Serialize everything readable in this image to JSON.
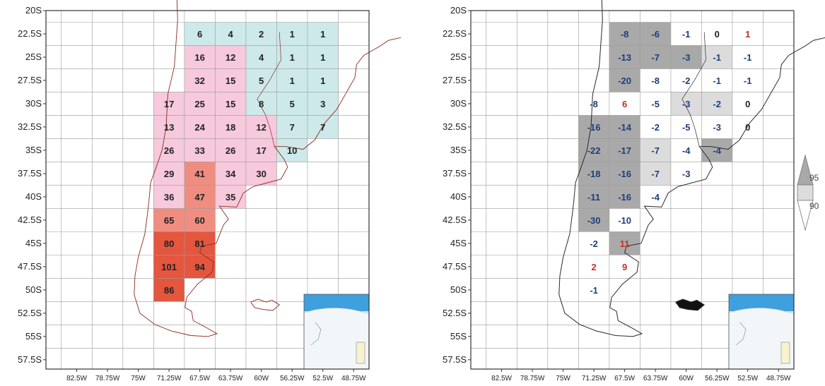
{
  "y_tick_labels": [
    "20S",
    "22.5S",
    "25S",
    "27.5S",
    "30S",
    "32.5S",
    "35S",
    "37.5S",
    "40S",
    "42.5S",
    "45S",
    "47.5S",
    "50S",
    "52.5S",
    "55S",
    "57.5S"
  ],
  "x_tick_labels": [
    "82.5W",
    "78.75W",
    "75W",
    "71.25W",
    "67.5W",
    "63.75W",
    "60W",
    "56.25W",
    "52.5W",
    "48.75W"
  ],
  "x_tick_values_lon": [
    -82.5,
    -78.75,
    -75,
    -71.25,
    -67.5,
    -63.75,
    -60,
    -56.25,
    -52.5,
    -48.75
  ],
  "y_tick_values_lat": [
    -20,
    -22.5,
    -25,
    -27.5,
    -30,
    -32.5,
    -35,
    -37.5,
    -40,
    -42.5,
    -45,
    -47.5,
    -50,
    -52.5,
    -55,
    -57.5
  ],
  "colors": {
    "teal": "#cde9ea",
    "pink": "#f6c9dc",
    "salmon": "#ef8e80",
    "red": "#e5563f",
    "gray_light": "#dcdcdc",
    "gray_dark": "#a9a9a9",
    "text_dark": "#222222",
    "text_blue": "#1d3f7a",
    "text_red": "#c4302b",
    "coast": "#8c2a1e",
    "grid": "#9a9a9a"
  },
  "legend": {
    "labels": [
      "95",
      "90"
    ],
    "levels": [
      95,
      90
    ]
  },
  "left_map": {
    "cells": [
      {
        "lat": -22.5,
        "lon": -67.5,
        "value": "6",
        "fill": "teal"
      },
      {
        "lat": -22.5,
        "lon": -63.75,
        "value": "4",
        "fill": "teal"
      },
      {
        "lat": -22.5,
        "lon": -60,
        "value": "2",
        "fill": "teal"
      },
      {
        "lat": -22.5,
        "lon": -56.25,
        "value": "1",
        "fill": "teal"
      },
      {
        "lat": -22.5,
        "lon": -52.5,
        "value": "1",
        "fill": "teal"
      },
      {
        "lat": -25,
        "lon": -67.5,
        "value": "16",
        "fill": "pink"
      },
      {
        "lat": -25,
        "lon": -63.75,
        "value": "12",
        "fill": "pink"
      },
      {
        "lat": -25,
        "lon": -60,
        "value": "4",
        "fill": "teal"
      },
      {
        "lat": -25,
        "lon": -56.25,
        "value": "1",
        "fill": "teal"
      },
      {
        "lat": -25,
        "lon": -52.5,
        "value": "1",
        "fill": "teal"
      },
      {
        "lat": -27.5,
        "lon": -67.5,
        "value": "32",
        "fill": "pink"
      },
      {
        "lat": -27.5,
        "lon": -63.75,
        "value": "15",
        "fill": "pink"
      },
      {
        "lat": -27.5,
        "lon": -60,
        "value": "5",
        "fill": "teal"
      },
      {
        "lat": -27.5,
        "lon": -56.25,
        "value": "1",
        "fill": "teal"
      },
      {
        "lat": -27.5,
        "lon": -52.5,
        "value": "1",
        "fill": "teal"
      },
      {
        "lat": -30,
        "lon": -71.25,
        "value": "17",
        "fill": "pink"
      },
      {
        "lat": -30,
        "lon": -67.5,
        "value": "25",
        "fill": "pink"
      },
      {
        "lat": -30,
        "lon": -63.75,
        "value": "15",
        "fill": "pink"
      },
      {
        "lat": -30,
        "lon": -60,
        "value": "8",
        "fill": "teal"
      },
      {
        "lat": -30,
        "lon": -56.25,
        "value": "5",
        "fill": "teal"
      },
      {
        "lat": -30,
        "lon": -52.5,
        "value": "3",
        "fill": "teal"
      },
      {
        "lat": -32.5,
        "lon": -71.25,
        "value": "13",
        "fill": "pink"
      },
      {
        "lat": -32.5,
        "lon": -67.5,
        "value": "24",
        "fill": "pink"
      },
      {
        "lat": -32.5,
        "lon": -63.75,
        "value": "18",
        "fill": "pink"
      },
      {
        "lat": -32.5,
        "lon": -60,
        "value": "12",
        "fill": "pink"
      },
      {
        "lat": -32.5,
        "lon": -56.25,
        "value": "7",
        "fill": "teal"
      },
      {
        "lat": -32.5,
        "lon": -52.5,
        "value": "7",
        "fill": "teal"
      },
      {
        "lat": -35,
        "lon": -71.25,
        "value": "26",
        "fill": "pink"
      },
      {
        "lat": -35,
        "lon": -67.5,
        "value": "33",
        "fill": "pink"
      },
      {
        "lat": -35,
        "lon": -63.75,
        "value": "26",
        "fill": "pink"
      },
      {
        "lat": -35,
        "lon": -60,
        "value": "17",
        "fill": "pink"
      },
      {
        "lat": -35,
        "lon": -56.25,
        "value": "10",
        "fill": "teal"
      },
      {
        "lat": -37.5,
        "lon": -71.25,
        "value": "29",
        "fill": "pink"
      },
      {
        "lat": -37.5,
        "lon": -67.5,
        "value": "41",
        "fill": "salmon"
      },
      {
        "lat": -37.5,
        "lon": -63.75,
        "value": "34",
        "fill": "pink"
      },
      {
        "lat": -37.5,
        "lon": -60,
        "value": "30",
        "fill": "pink"
      },
      {
        "lat": -40,
        "lon": -71.25,
        "value": "36",
        "fill": "pink"
      },
      {
        "lat": -40,
        "lon": -67.5,
        "value": "47",
        "fill": "salmon"
      },
      {
        "lat": -40,
        "lon": -63.75,
        "value": "35",
        "fill": "pink"
      },
      {
        "lat": -42.5,
        "lon": -71.25,
        "value": "65",
        "fill": "salmon"
      },
      {
        "lat": -42.5,
        "lon": -67.5,
        "value": "60",
        "fill": "salmon"
      },
      {
        "lat": -45,
        "lon": -71.25,
        "value": "80",
        "fill": "red"
      },
      {
        "lat": -45,
        "lon": -67.5,
        "value": "81",
        "fill": "red"
      },
      {
        "lat": -47.5,
        "lon": -71.25,
        "value": "101",
        "fill": "red"
      },
      {
        "lat": -47.5,
        "lon": -67.5,
        "value": "94",
        "fill": "red"
      },
      {
        "lat": -50,
        "lon": -71.25,
        "value": "86",
        "fill": "red"
      }
    ]
  },
  "right_map": {
    "cells": [
      {
        "lat": -22.5,
        "lon": -67.5,
        "value": "-8",
        "fill": "gray_dark",
        "text": "text_blue"
      },
      {
        "lat": -22.5,
        "lon": -63.75,
        "value": "-6",
        "fill": "gray_dark",
        "text": "text_blue"
      },
      {
        "lat": -22.5,
        "lon": -60,
        "value": "-1",
        "fill": "none",
        "text": "text_blue"
      },
      {
        "lat": -22.5,
        "lon": -56.25,
        "value": "0",
        "fill": "none",
        "text": "text_dark"
      },
      {
        "lat": -22.5,
        "lon": -52.5,
        "value": "1",
        "fill": "none",
        "text": "text_red"
      },
      {
        "lat": -25,
        "lon": -67.5,
        "value": "-13",
        "fill": "gray_dark",
        "text": "text_blue"
      },
      {
        "lat": -25,
        "lon": -63.75,
        "value": "-7",
        "fill": "gray_dark",
        "text": "text_blue"
      },
      {
        "lat": -25,
        "lon": -60,
        "value": "-3",
        "fill": "gray_dark",
        "text": "text_blue"
      },
      {
        "lat": -25,
        "lon": -56.25,
        "value": "-1",
        "fill": "gray_light",
        "text": "text_blue"
      },
      {
        "lat": -25,
        "lon": -52.5,
        "value": "-1",
        "fill": "none",
        "text": "text_blue"
      },
      {
        "lat": -27.5,
        "lon": -67.5,
        "value": "-20",
        "fill": "gray_dark",
        "text": "text_blue"
      },
      {
        "lat": -27.5,
        "lon": -63.75,
        "value": "-8",
        "fill": "none",
        "text": "text_blue"
      },
      {
        "lat": -27.5,
        "lon": -60,
        "value": "-2",
        "fill": "none",
        "text": "text_blue"
      },
      {
        "lat": -27.5,
        "lon": -56.25,
        "value": "-1",
        "fill": "none",
        "text": "text_blue"
      },
      {
        "lat": -27.5,
        "lon": -52.5,
        "value": "-1",
        "fill": "none",
        "text": "text_blue"
      },
      {
        "lat": -30,
        "lon": -71.25,
        "value": "-8",
        "fill": "none",
        "text": "text_blue"
      },
      {
        "lat": -30,
        "lon": -67.5,
        "value": "6",
        "fill": "none",
        "text": "text_red"
      },
      {
        "lat": -30,
        "lon": -63.75,
        "value": "-5",
        "fill": "none",
        "text": "text_blue"
      },
      {
        "lat": -30,
        "lon": -60,
        "value": "-3",
        "fill": "gray_light",
        "text": "text_blue"
      },
      {
        "lat": -30,
        "lon": -56.25,
        "value": "-2",
        "fill": "gray_light",
        "text": "text_blue"
      },
      {
        "lat": -30,
        "lon": -52.5,
        "value": "0",
        "fill": "none",
        "text": "text_dark"
      },
      {
        "lat": -32.5,
        "lon": -71.25,
        "value": "-16",
        "fill": "gray_dark",
        "text": "text_blue"
      },
      {
        "lat": -32.5,
        "lon": -67.5,
        "value": "-14",
        "fill": "gray_dark",
        "text": "text_blue"
      },
      {
        "lat": -32.5,
        "lon": -63.75,
        "value": "-2",
        "fill": "none",
        "text": "text_blue"
      },
      {
        "lat": -32.5,
        "lon": -60,
        "value": "-5",
        "fill": "none",
        "text": "text_blue"
      },
      {
        "lat": -32.5,
        "lon": -56.25,
        "value": "-3",
        "fill": "none",
        "text": "text_blue"
      },
      {
        "lat": -32.5,
        "lon": -52.5,
        "value": "0",
        "fill": "none",
        "text": "text_dark"
      },
      {
        "lat": -35,
        "lon": -71.25,
        "value": "-22",
        "fill": "gray_dark",
        "text": "text_blue"
      },
      {
        "lat": -35,
        "lon": -67.5,
        "value": "-17",
        "fill": "gray_dark",
        "text": "text_blue"
      },
      {
        "lat": -35,
        "lon": -63.75,
        "value": "-7",
        "fill": "gray_light",
        "text": "text_blue"
      },
      {
        "lat": -35,
        "lon": -60,
        "value": "-4",
        "fill": "none",
        "text": "text_blue"
      },
      {
        "lat": -35,
        "lon": -56.25,
        "value": "-4",
        "fill": "gray_dark",
        "text": "text_blue"
      },
      {
        "lat": -37.5,
        "lon": -71.25,
        "value": "-18",
        "fill": "gray_dark",
        "text": "text_blue"
      },
      {
        "lat": -37.5,
        "lon": -67.5,
        "value": "-16",
        "fill": "gray_dark",
        "text": "text_blue"
      },
      {
        "lat": -37.5,
        "lon": -63.75,
        "value": "-7",
        "fill": "gray_light",
        "text": "text_blue"
      },
      {
        "lat": -37.5,
        "lon": -60,
        "value": "-3",
        "fill": "none",
        "text": "text_blue"
      },
      {
        "lat": -40,
        "lon": -71.25,
        "value": "-11",
        "fill": "gray_dark",
        "text": "text_blue"
      },
      {
        "lat": -40,
        "lon": -67.5,
        "value": "-16",
        "fill": "gray_dark",
        "text": "text_blue"
      },
      {
        "lat": -40,
        "lon": -63.75,
        "value": "-4",
        "fill": "none",
        "text": "text_blue"
      },
      {
        "lat": -42.5,
        "lon": -71.25,
        "value": "-30",
        "fill": "gray_dark",
        "text": "text_blue"
      },
      {
        "lat": -42.5,
        "lon": -67.5,
        "value": "-10",
        "fill": "none",
        "text": "text_blue"
      },
      {
        "lat": -45,
        "lon": -71.25,
        "value": "-2",
        "fill": "none",
        "text": "text_blue"
      },
      {
        "lat": -45,
        "lon": -67.5,
        "value": "11",
        "fill": "gray_dark",
        "text": "text_red"
      },
      {
        "lat": -47.5,
        "lon": -71.25,
        "value": "2",
        "fill": "none",
        "text": "text_red"
      },
      {
        "lat": -47.5,
        "lon": -67.5,
        "value": "9",
        "fill": "none",
        "text": "text_red"
      },
      {
        "lat": -50,
        "lon": -71.25,
        "value": "-1",
        "fill": "none",
        "text": "text_blue"
      }
    ]
  }
}
